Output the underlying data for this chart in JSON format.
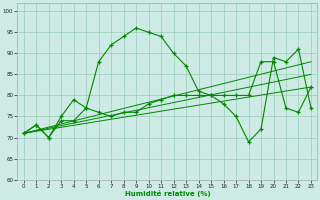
{
  "xlabel": "Humidité relative (%)",
  "xlim": [
    -0.5,
    23.5
  ],
  "ylim": [
    60,
    102
  ],
  "yticks": [
    60,
    65,
    70,
    75,
    80,
    85,
    90,
    95,
    100
  ],
  "xticks": [
    0,
    1,
    2,
    3,
    4,
    5,
    6,
    7,
    8,
    9,
    10,
    11,
    12,
    13,
    14,
    15,
    16,
    17,
    18,
    19,
    20,
    21,
    22,
    23
  ],
  "bg_color": "#ceeae4",
  "grid_color": "#99ccbb",
  "line_color": "#008800",
  "y_upper": [
    71,
    73,
    70,
    75,
    79,
    77,
    88,
    92,
    94,
    96,
    95,
    94,
    90,
    87,
    81,
    80,
    78,
    75,
    69,
    72,
    89,
    88,
    91,
    77
  ],
  "y_lower": [
    71,
    73,
    70,
    74,
    74,
    77,
    76,
    75,
    76,
    76,
    78,
    79,
    80,
    80,
    80,
    80,
    80,
    80,
    80,
    88,
    88,
    77,
    76,
    82
  ],
  "trend_lines": [
    [
      71,
      88
    ],
    [
      71,
      85
    ],
    [
      71,
      82
    ]
  ]
}
